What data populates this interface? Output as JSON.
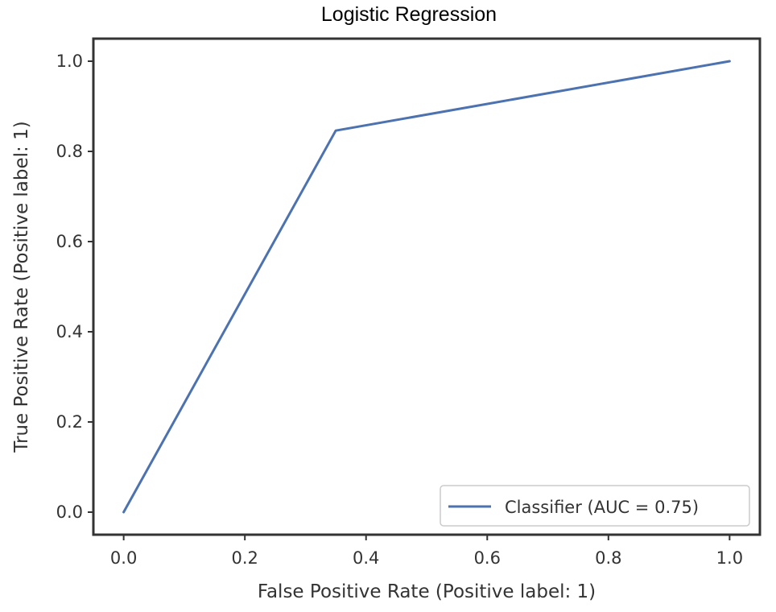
{
  "chart_data": {
    "type": "line",
    "title": "Logistic Regression",
    "xlabel": "False Positive Rate (Positive label: 1)",
    "ylabel": "True Positive Rate (Positive label: 1)",
    "xlim": [
      -0.05,
      1.05
    ],
    "ylim": [
      -0.05,
      1.05
    ],
    "xticks": [
      "0.0",
      "0.2",
      "0.4",
      "0.6",
      "0.8",
      "1.0"
    ],
    "yticks": [
      "0.0",
      "0.2",
      "0.4",
      "0.6",
      "0.8",
      "1.0"
    ],
    "grid": false,
    "legend_position": "lower-right",
    "series": [
      {
        "name": "Classifier (AUC = 0.75)",
        "color": "#4c72b0",
        "x": [
          0.0,
          0.35,
          1.0
        ],
        "y": [
          0.0,
          0.846,
          1.0
        ]
      }
    ]
  }
}
